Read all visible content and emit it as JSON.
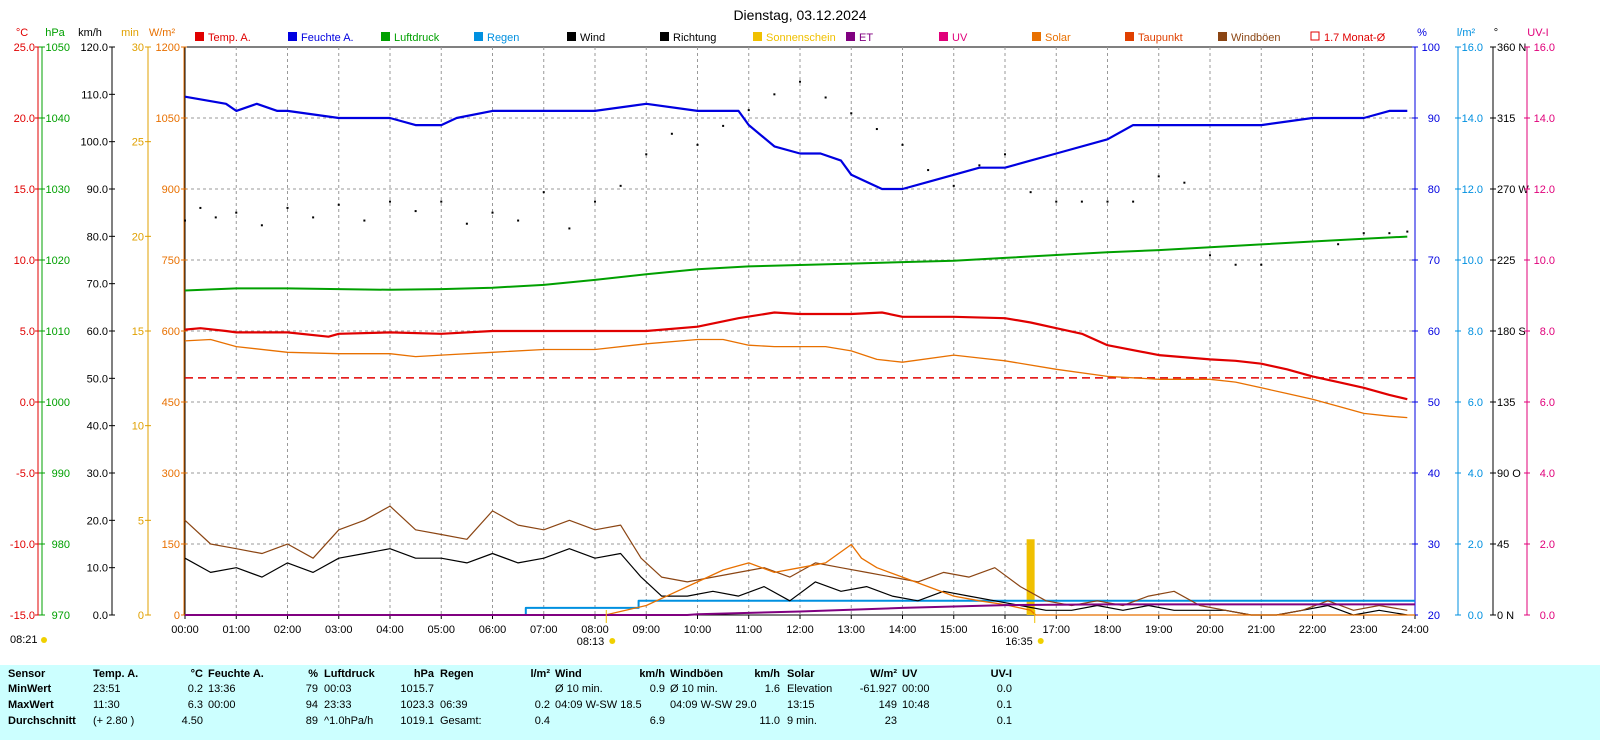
{
  "title": "Dienstag, 03.12.2024",
  "legend": [
    {
      "label": "Temp. A.",
      "color": "#e00000"
    },
    {
      "label": "Feuchte A.",
      "color": "#0000e0"
    },
    {
      "label": "Luftdruck",
      "color": "#00a000"
    },
    {
      "label": "Regen",
      "color": "#0090e0"
    },
    {
      "label": "Wind",
      "color": "#000000"
    },
    {
      "label": "Richtung",
      "color": "#000000"
    },
    {
      "label": "Sonnenschein",
      "color": "#f0c000"
    },
    {
      "label": "ET",
      "color": "#800080"
    },
    {
      "label": "UV",
      "color": "#e0007a"
    },
    {
      "label": "Solar",
      "color": "#e87000"
    },
    {
      "label": "Taupunkt",
      "color": "#e04000"
    },
    {
      "label": "Windböen",
      "color": "#8b4513"
    },
    {
      "label": "1.7 Monat-Ø",
      "color": "#e00000"
    }
  ],
  "axes": {
    "temp": {
      "unit": "°C",
      "color": "#e00000",
      "ticks": [
        "25.0",
        "20.0",
        "15.0",
        "10.0",
        "5.0",
        "0.0",
        "-5.0",
        "-10.0",
        "-15.0"
      ]
    },
    "hpa": {
      "unit": "hPa",
      "color": "#00a000",
      "ticks": [
        "1050",
        "1040",
        "1030",
        "1020",
        "1010",
        "1000",
        "990",
        "980",
        "970"
      ]
    },
    "kmh": {
      "unit": "km/h",
      "color": "#000000",
      "ticks": [
        "120.0",
        "110.0",
        "100.0",
        "90.0",
        "80.0",
        "70.0",
        "60.0",
        "50.0",
        "40.0",
        "30.0",
        "20.0",
        "10.0",
        "0.0"
      ]
    },
    "min": {
      "unit": "min",
      "color": "#e0a000",
      "ticks": [
        "30",
        "25",
        "20",
        "15",
        "10",
        "5",
        "0"
      ]
    },
    "solar": {
      "unit": "W/m²",
      "color": "#e87000",
      "ticks": [
        "1200",
        "1050",
        "900",
        "750",
        "600",
        "450",
        "300",
        "150",
        "0"
      ]
    },
    "hum": {
      "unit": "%",
      "color": "#0000e0",
      "ticks": [
        "100",
        "90",
        "80",
        "70",
        "60",
        "50",
        "40",
        "30",
        "20"
      ]
    },
    "rain": {
      "unit": "l/m²",
      "color": "#0090e0",
      "ticks": [
        "16.0",
        "14.0",
        "12.0",
        "10.0",
        "8.0",
        "6.0",
        "4.0",
        "2.0",
        "0.0"
      ]
    },
    "dir": {
      "unit": "°",
      "color": "#000000",
      "ticks": [
        "360 N",
        "315",
        "270 W",
        "225",
        "180 S",
        "135",
        "90 O",
        "45",
        "0 N"
      ]
    },
    "uv": {
      "unit": "UV-I",
      "color": "#e0007a",
      "ticks": [
        "16.0",
        "14.0",
        "12.0",
        "10.0",
        "8.0",
        "6.0",
        "4.0",
        "2.0",
        "0.0"
      ]
    }
  },
  "x_ticks": [
    "00:00",
    "01:00",
    "02:00",
    "03:00",
    "04:00",
    "05:00",
    "06:00",
    "07:00",
    "08:00",
    "09:00",
    "10:00",
    "11:00",
    "12:00",
    "13:00",
    "14:00",
    "15:00",
    "16:00",
    "17:00",
    "18:00",
    "19:00",
    "20:00",
    "21:00",
    "22:00",
    "23:00",
    "24:00"
  ],
  "sun_marks": {
    "left": "08:21",
    "sunrise": "08:13",
    "sunset": "16:35"
  },
  "chart_data": {
    "type": "line",
    "x_unit": "hours",
    "series": [
      {
        "name": "Temp. A.",
        "unit": "°C",
        "color": "#e00000",
        "x": [
          0,
          0.3,
          0.8,
          1,
          2,
          2.8,
          3,
          4,
          5,
          6,
          7,
          8,
          9,
          10,
          10.8,
          11.5,
          12,
          13,
          13.6,
          14,
          15,
          16,
          16.5,
          17,
          17.5,
          18,
          19,
          20,
          20.5,
          21,
          21.5,
          22,
          22.5,
          23,
          23.5,
          23.85
        ],
        "y": [
          5.1,
          5.2,
          5.0,
          4.9,
          4.9,
          4.6,
          4.8,
          4.9,
          4.8,
          5.0,
          5.0,
          5.0,
          5.0,
          5.3,
          5.9,
          6.3,
          6.2,
          6.2,
          6.3,
          6.0,
          6.0,
          5.9,
          5.6,
          5.2,
          4.8,
          4.0,
          3.3,
          3.0,
          2.9,
          2.7,
          2.3,
          1.8,
          1.4,
          1.0,
          0.5,
          0.2
        ]
      },
      {
        "name": "Taupunkt",
        "unit": "°C",
        "color": "#e87000",
        "x": [
          0,
          0.5,
          1,
          2,
          3,
          4,
          4.5,
          5,
          6,
          7,
          8,
          9,
          10,
          10.5,
          11,
          11.5,
          12,
          12.5,
          13,
          13.5,
          14,
          15,
          15.5,
          16,
          17,
          18,
          19,
          20,
          20.5,
          21,
          21.5,
          22,
          22.5,
          23,
          23.5,
          23.85
        ],
        "y": [
          4.3,
          4.4,
          3.9,
          3.5,
          3.4,
          3.4,
          3.2,
          3.3,
          3.5,
          3.7,
          3.7,
          4.1,
          4.4,
          4.4,
          4.0,
          3.9,
          3.9,
          3.9,
          3.6,
          3.0,
          2.8,
          3.3,
          3.1,
          2.9,
          2.3,
          1.8,
          1.6,
          1.6,
          1.4,
          1.0,
          0.6,
          0.2,
          -0.3,
          -0.8,
          -1.0,
          -1.1
        ]
      },
      {
        "name": "Feuchte A.",
        "unit": "%",
        "color": "#0000e0",
        "x": [
          0,
          0.8,
          1,
          1.4,
          1.8,
          2,
          3,
          4,
          4.5,
          5,
          5.3,
          6,
          7,
          8,
          9,
          10,
          10.4,
          10.8,
          11,
          11.5,
          12,
          12.4,
          12.8,
          13,
          13.3,
          13.6,
          14,
          14.5,
          15,
          15.5,
          16,
          16.5,
          17,
          18,
          18.5,
          19,
          20,
          21,
          22,
          23,
          23.5,
          23.85
        ],
        "y": [
          93,
          92,
          91,
          92,
          91,
          91,
          90,
          90,
          89,
          89,
          90,
          91,
          91,
          91,
          92,
          91,
          91,
          91,
          89,
          86,
          85,
          85,
          84,
          82,
          81,
          80,
          80,
          81,
          82,
          83,
          83,
          84,
          85,
          87,
          89,
          89,
          89,
          89,
          90,
          90,
          91,
          91
        ]
      },
      {
        "name": "Luftdruck",
        "unit": "hPa",
        "color": "#00a000",
        "x": [
          0,
          1,
          2,
          3,
          4,
          5,
          6,
          7,
          8,
          9,
          10,
          11,
          12,
          13,
          14,
          15,
          16,
          17,
          18,
          19,
          20,
          21,
          22,
          23,
          23.85
        ],
        "y": [
          1015.7,
          1016.0,
          1016.0,
          1015.9,
          1015.8,
          1015.9,
          1016.1,
          1016.5,
          1017.2,
          1018.0,
          1018.7,
          1019.1,
          1019.3,
          1019.5,
          1019.7,
          1019.9,
          1020.3,
          1020.7,
          1021.1,
          1021.4,
          1021.8,
          1022.2,
          1022.6,
          1023.0,
          1023.3
        ]
      },
      {
        "name": "Regen",
        "unit": "l/m²",
        "color": "#0090e0",
        "x": [
          0,
          6.6,
          6.65,
          8.8,
          8.85,
          24
        ],
        "y": [
          0,
          0,
          0.2,
          0.2,
          0.4,
          0.4
        ]
      },
      {
        "name": "Wind",
        "unit": "km/h",
        "color": "#000000",
        "x": [
          0,
          0.5,
          1,
          1.5,
          2,
          2.5,
          3,
          3.5,
          4,
          4.5,
          5,
          5.5,
          6,
          6.5,
          7,
          7.5,
          8,
          8.5,
          8.9,
          9.3,
          9.8,
          10.3,
          10.8,
          11.3,
          11.8,
          12.3,
          12.8,
          13.3,
          13.8,
          14.3,
          14.8,
          15.3,
          15.8,
          16.3,
          16.8,
          17.3,
          17.8,
          18.3,
          18.8,
          19.3,
          19.8,
          20.3,
          20.8,
          21.3,
          21.8,
          22.3,
          22.8,
          23.3,
          23.85
        ],
        "y": [
          12,
          9,
          10,
          8,
          11,
          9,
          12,
          13,
          14,
          12,
          12,
          11,
          13,
          11,
          12,
          14,
          12,
          13,
          8,
          4,
          4,
          5,
          4,
          6,
          3,
          7,
          5,
          6,
          4,
          3,
          5,
          4,
          3,
          2,
          1,
          1,
          2,
          1,
          2,
          1,
          1,
          1,
          0,
          0,
          1,
          2,
          0,
          1,
          0
        ]
      },
      {
        "name": "Windböen",
        "unit": "km/h",
        "color": "#8b4513",
        "x": [
          0,
          0.5,
          1,
          1.5,
          2,
          2.5,
          3,
          3.5,
          4,
          4.5,
          5,
          5.5,
          6,
          6.5,
          7,
          7.5,
          8,
          8.5,
          8.9,
          9.3,
          9.8,
          10.3,
          10.8,
          11.3,
          11.8,
          12.3,
          12.8,
          13.3,
          13.8,
          14.3,
          14.8,
          15.3,
          15.8,
          16.3,
          16.8,
          17.3,
          17.8,
          18.3,
          18.8,
          19.3,
          19.8,
          20.3,
          20.8,
          21.3,
          21.8,
          22.3,
          22.8,
          23.3,
          23.85
        ],
        "y": [
          20,
          15,
          14,
          13,
          15,
          12,
          18,
          20,
          23,
          18,
          17,
          16,
          22,
          19,
          18,
          20,
          18,
          19,
          12,
          8,
          7,
          8,
          9,
          10,
          8,
          11,
          10,
          9,
          8,
          7,
          9,
          8,
          10,
          6,
          3,
          2,
          3,
          2,
          4,
          5,
          2,
          1,
          0,
          0,
          1,
          3,
          1,
          2,
          1
        ]
      },
      {
        "name": "Solar",
        "unit": "W/m²",
        "color": "#e87000",
        "x": [
          0,
          8.2,
          9,
          9.5,
          10,
          10.5,
          11,
          11.5,
          12,
          12.5,
          13,
          13.2,
          13.5,
          14,
          14.5,
          15,
          15.5,
          16,
          16.5,
          16.6,
          17,
          24
        ],
        "y": [
          0,
          0,
          20,
          45,
          70,
          95,
          110,
          90,
          100,
          110,
          149,
          120,
          100,
          80,
          60,
          40,
          30,
          22,
          10,
          0,
          0,
          0
        ]
      },
      {
        "name": "ET",
        "unit": "l/m²",
        "color": "#800080",
        "x": [
          0,
          9.8,
          10,
          12,
          14,
          16,
          18,
          24
        ],
        "y": [
          0,
          0,
          0.02,
          0.1,
          0.2,
          0.28,
          0.3,
          0.3
        ]
      },
      {
        "name": "Richtung",
        "unit": "°",
        "color": "#000000",
        "x": [
          0,
          0.3,
          0.6,
          1,
          1.5,
          2,
          2.5,
          3,
          3.5,
          4,
          4.5,
          5,
          5.5,
          6,
          6.5,
          7,
          7.5,
          8,
          8.5,
          9,
          9.5,
          10,
          10.5,
          11,
          11.5,
          12,
          12.5,
          13,
          13.5,
          14,
          14.5,
          15,
          15.5,
          16,
          16.5,
          17,
          17.5,
          18,
          18.5,
          19,
          19.5,
          20,
          20.5,
          21,
          22.5,
          23,
          23.5,
          23.85
        ],
        "y": [
          250,
          258,
          252,
          255,
          247,
          258,
          252,
          260,
          250,
          262,
          256,
          262,
          248,
          255,
          250,
          268,
          245,
          262,
          272,
          292,
          305,
          298,
          310,
          320,
          330,
          338,
          328,
          318,
          308,
          298,
          282,
          272,
          285,
          292,
          268,
          262,
          262,
          262,
          262,
          278,
          274,
          228,
          222,
          222,
          235,
          242,
          242,
          243
        ]
      }
    ],
    "reference_line": {
      "name": "1.7 Monat-Ø",
      "unit": "°C",
      "value": 1.7,
      "color": "#e00000",
      "style": "dashed"
    },
    "sunshine_bars": [
      {
        "x": 16.5,
        "minutes": 4
      }
    ]
  },
  "table": {
    "row_labels": [
      "Sensor",
      "MinWert",
      "MaxWert",
      "Durchschnitt"
    ],
    "groups": [
      {
        "name": "Temp. A.",
        "unit": "°C",
        "rows": [
          [
            "23:51",
            "0.2"
          ],
          [
            "11:30",
            "6.3"
          ],
          [
            "(+ 2.80 )",
            "4.50"
          ]
        ]
      },
      {
        "name": "Feuchte A.",
        "unit": "%",
        "rows": [
          [
            "13:36",
            "79"
          ],
          [
            "00:00",
            "94"
          ],
          [
            "",
            "89"
          ]
        ]
      },
      {
        "name": "Luftdruck",
        "unit": "hPa",
        "rows": [
          [
            "00:03",
            "1015.7"
          ],
          [
            "23:33",
            "1023.3"
          ],
          [
            "^1.0hPa/h",
            "1019.1"
          ]
        ]
      },
      {
        "name": "Regen",
        "unit": "l/m²",
        "rows": [
          [
            "",
            ""
          ],
          [
            "06:39",
            "0.2"
          ],
          [
            "Gesamt:",
            "0.4"
          ]
        ]
      },
      {
        "name": "Wind",
        "unit": "km/h",
        "rows": [
          [
            "Ø 10 min.",
            "0.9"
          ],
          [
            "04:09   W-SW 18.5",
            ""
          ],
          [
            "",
            "6.9"
          ]
        ]
      },
      {
        "name": "Windböen",
        "unit": "km/h",
        "rows": [
          [
            "Ø 10 min.",
            "1.6"
          ],
          [
            "04:09   W-SW 29.0",
            ""
          ],
          [
            "",
            "11.0"
          ]
        ]
      },
      {
        "name": "Solar",
        "unit": "W/m²",
        "rows": [
          [
            "Elevation",
            "-61.927"
          ],
          [
            "13:15",
            "149"
          ],
          [
            "9 min.",
            "23"
          ]
        ]
      },
      {
        "name": "UV",
        "unit": "UV-I",
        "rows": [
          [
            "00:00",
            "0.0"
          ],
          [
            "10:48",
            "0.1"
          ],
          [
            "",
            "0.1"
          ]
        ]
      }
    ]
  }
}
